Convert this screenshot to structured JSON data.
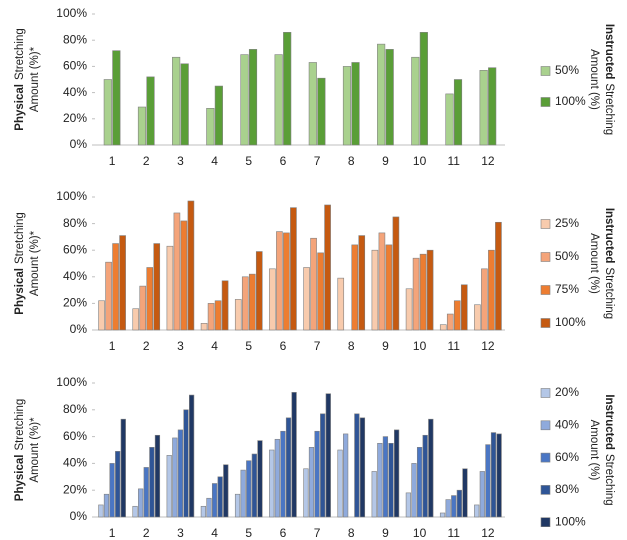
{
  "chart_data": [
    {
      "type": "bar",
      "y_label": {
        "bold": "Physical",
        "line1": "Stretching",
        "line2": "Amount (%)*"
      },
      "legend_title": {
        "bold": "Instructed",
        "line1": "Stretching",
        "line2": "Amount (%)"
      },
      "categories": [
        "1",
        "2",
        "3",
        "4",
        "5",
        "6",
        "7",
        "8",
        "9",
        "10",
        "11",
        "12"
      ],
      "series": [
        {
          "name": "50%",
          "color": "#a9d18e",
          "values": [
            50,
            29,
            67,
            28,
            69,
            69,
            63,
            60,
            77,
            67,
            39,
            57
          ]
        },
        {
          "name": "100%",
          "color": "#5a9e37",
          "values": [
            72,
            52,
            62,
            45,
            73,
            86,
            51,
            63,
            73,
            86,
            50,
            59
          ]
        }
      ],
      "ylim": [
        0,
        100
      ],
      "yticks": [
        {
          "value": 0,
          "label": "0%"
        },
        {
          "value": 20,
          "label": "20%"
        },
        {
          "value": 40,
          "label": "40%"
        },
        {
          "value": 60,
          "label": "60%"
        },
        {
          "value": 80,
          "label": "80%"
        },
        {
          "value": 100,
          "label": "100%"
        }
      ],
      "legend": "right"
    },
    {
      "type": "bar",
      "y_label": {
        "bold": "Physical",
        "line1": "Stretching",
        "line2": "Amount (%)*"
      },
      "legend_title": {
        "bold": "Instructed",
        "line1": "Stretching",
        "line2": "Amount (%)"
      },
      "categories": [
        "1",
        "2",
        "3",
        "4",
        "5",
        "6",
        "7",
        "8",
        "9",
        "10",
        "11",
        "12"
      ],
      "series": [
        {
          "name": "25%",
          "color": "#f8cbad",
          "values": [
            22,
            16,
            63,
            5,
            23,
            46,
            47,
            39,
            60,
            31,
            4,
            19
          ]
        },
        {
          "name": "50%",
          "color": "#f4a47a",
          "values": [
            51,
            33,
            88,
            20,
            40,
            74,
            69,
            null,
            73,
            54,
            12,
            46
          ]
        },
        {
          "name": "75%",
          "color": "#ed7d31",
          "values": [
            65,
            47,
            82,
            22,
            42,
            73,
            58,
            64,
            64,
            57,
            22,
            60
          ]
        },
        {
          "name": "100%",
          "color": "#c55a11",
          "values": [
            71,
            65,
            97,
            37,
            59,
            92,
            94,
            71,
            85,
            60,
            34,
            81
          ]
        }
      ],
      "ylim": [
        0,
        100
      ],
      "yticks": [
        {
          "value": 0,
          "label": "0%"
        },
        {
          "value": 20,
          "label": "20%"
        },
        {
          "value": 40,
          "label": "40%"
        },
        {
          "value": 60,
          "label": "60%"
        },
        {
          "value": 80,
          "label": "80%"
        },
        {
          "value": 100,
          "label": "100%"
        }
      ],
      "legend": "right"
    },
    {
      "type": "bar",
      "y_label": {
        "bold": "Physical",
        "line1": "Stretching",
        "line2": "Amount (%)*"
      },
      "legend_title": {
        "bold": "Instructed",
        "line1": "Stretching",
        "line2": "Amount (%)"
      },
      "categories": [
        "1",
        "2",
        "3",
        "4",
        "5",
        "6",
        "7",
        "8",
        "9",
        "10",
        "11",
        "12"
      ],
      "series": [
        {
          "name": "20%",
          "color": "#b4c7e7",
          "values": [
            9,
            8,
            46,
            8,
            17,
            50,
            36,
            50,
            34,
            18,
            3,
            9
          ]
        },
        {
          "name": "40%",
          "color": "#8faadc",
          "values": [
            17,
            21,
            59,
            14,
            35,
            58,
            52,
            62,
            55,
            40,
            13,
            34
          ]
        },
        {
          "name": "60%",
          "color": "#4a76c4",
          "values": [
            40,
            37,
            65,
            25,
            42,
            64,
            64,
            null,
            60,
            52,
            16,
            54
          ]
        },
        {
          "name": "80%",
          "color": "#2f5597",
          "values": [
            49,
            52,
            80,
            30,
            47,
            74,
            77,
            77,
            55,
            61,
            20,
            63
          ]
        },
        {
          "name": "100%",
          "color": "#203864",
          "values": [
            73,
            61,
            91,
            39,
            57,
            93,
            92,
            74,
            65,
            73,
            36,
            62
          ]
        }
      ],
      "ylim": [
        0,
        100
      ],
      "yticks": [
        {
          "value": 0,
          "label": "0%"
        },
        {
          "value": 20,
          "label": "20%"
        },
        {
          "value": 40,
          "label": "40%"
        },
        {
          "value": 60,
          "label": "60%"
        },
        {
          "value": 80,
          "label": "80%"
        },
        {
          "value": 100,
          "label": "100%"
        }
      ],
      "legend": "right"
    }
  ]
}
